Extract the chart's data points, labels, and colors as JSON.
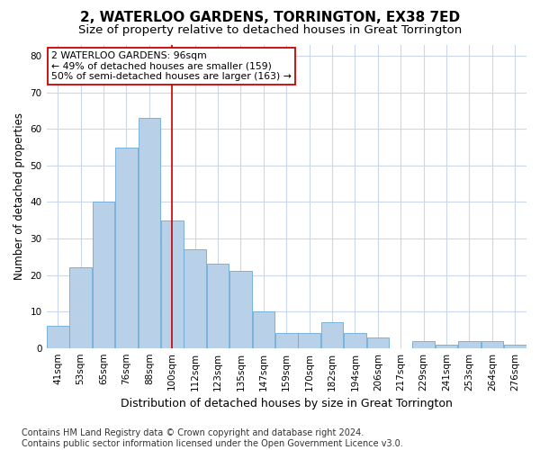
{
  "title": "2, WATERLOO GARDENS, TORRINGTON, EX38 7ED",
  "subtitle": "Size of property relative to detached houses in Great Torrington",
  "xlabel": "Distribution of detached houses by size in Great Torrington",
  "ylabel": "Number of detached properties",
  "categories": [
    "41sqm",
    "53sqm",
    "65sqm",
    "76sqm",
    "88sqm",
    "100sqm",
    "112sqm",
    "123sqm",
    "135sqm",
    "147sqm",
    "159sqm",
    "170sqm",
    "182sqm",
    "194sqm",
    "206sqm",
    "217sqm",
    "229sqm",
    "241sqm",
    "253sqm",
    "264sqm",
    "276sqm"
  ],
  "values": [
    6,
    22,
    40,
    55,
    63,
    35,
    27,
    23,
    21,
    10,
    4,
    4,
    7,
    4,
    3,
    0,
    2,
    1,
    2,
    2,
    1
  ],
  "bar_color": "#b8d0e8",
  "bar_edge_color": "#6aaad4",
  "ylim": [
    0,
    83
  ],
  "yticks": [
    0,
    10,
    20,
    30,
    40,
    50,
    60,
    70,
    80
  ],
  "vline_x_index": 5,
  "vline_color": "#cc0000",
  "annotation_text": "2 WATERLOO GARDENS: 96sqm\n← 49% of detached houses are smaller (159)\n50% of semi-detached houses are larger (163) →",
  "annotation_box_color": "#ffffff",
  "annotation_box_edge": "#cc0000",
  "footer_line1": "Contains HM Land Registry data © Crown copyright and database right 2024.",
  "footer_line2": "Contains public sector information licensed under the Open Government Licence v3.0.",
  "background_color": "#ffffff",
  "grid_color": "#ccd8ea",
  "title_fontsize": 11,
  "subtitle_fontsize": 9.5,
  "xlabel_fontsize": 9,
  "ylabel_fontsize": 8.5,
  "tick_fontsize": 7.5,
  "footer_fontsize": 7,
  "annotation_fontsize": 7.8
}
